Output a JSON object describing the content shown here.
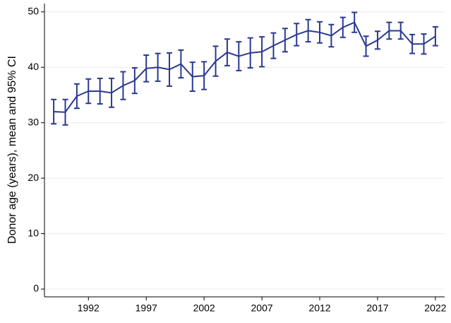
{
  "chart_data": {
    "type": "line",
    "y_label": "Donor age (years), mean and 95% CI",
    "x": [
      1989,
      1990,
      1991,
      1992,
      1993,
      1994,
      1995,
      1996,
      1997,
      1998,
      1999,
      2000,
      2001,
      2002,
      2003,
      2004,
      2005,
      2006,
      2007,
      2008,
      2009,
      2010,
      2011,
      2012,
      2013,
      2014,
      2015,
      2016,
      2017,
      2018,
      2019,
      2020,
      2021,
      2022
    ],
    "series": [
      {
        "color": "#2b3990",
        "values": [
          32.0,
          31.9,
          34.8,
          35.7,
          35.7,
          35.4,
          36.7,
          37.6,
          39.8,
          40.0,
          39.6,
          40.6,
          38.3,
          38.5,
          41.1,
          42.7,
          42.0,
          42.6,
          42.8,
          43.9,
          44.9,
          45.9,
          46.6,
          46.3,
          45.7,
          47.2,
          48.1,
          43.8,
          44.9,
          46.6,
          46.6,
          44.2,
          44.2,
          45.6
        ],
        "errors": [
          2.2,
          2.3,
          2.2,
          2.2,
          2.3,
          2.6,
          2.5,
          2.3,
          2.4,
          2.5,
          3.0,
          2.5,
          2.6,
          2.5,
          2.7,
          2.4,
          2.6,
          2.7,
          2.7,
          2.3,
          2.1,
          2.0,
          2.0,
          1.9,
          2.0,
          1.8,
          1.8,
          1.8,
          1.6,
          1.5,
          1.5,
          1.7,
          1.8,
          1.7
        ]
      }
    ],
    "xlim": [
      1988.2,
      2022.8
    ],
    "xticks": [
      1992,
      1997,
      2002,
      2007,
      2012,
      2017,
      2022
    ],
    "ylim": [
      -1.4,
      51.5
    ],
    "yticks": [
      0,
      10,
      20,
      30,
      40,
      50
    ],
    "grid": true
  }
}
